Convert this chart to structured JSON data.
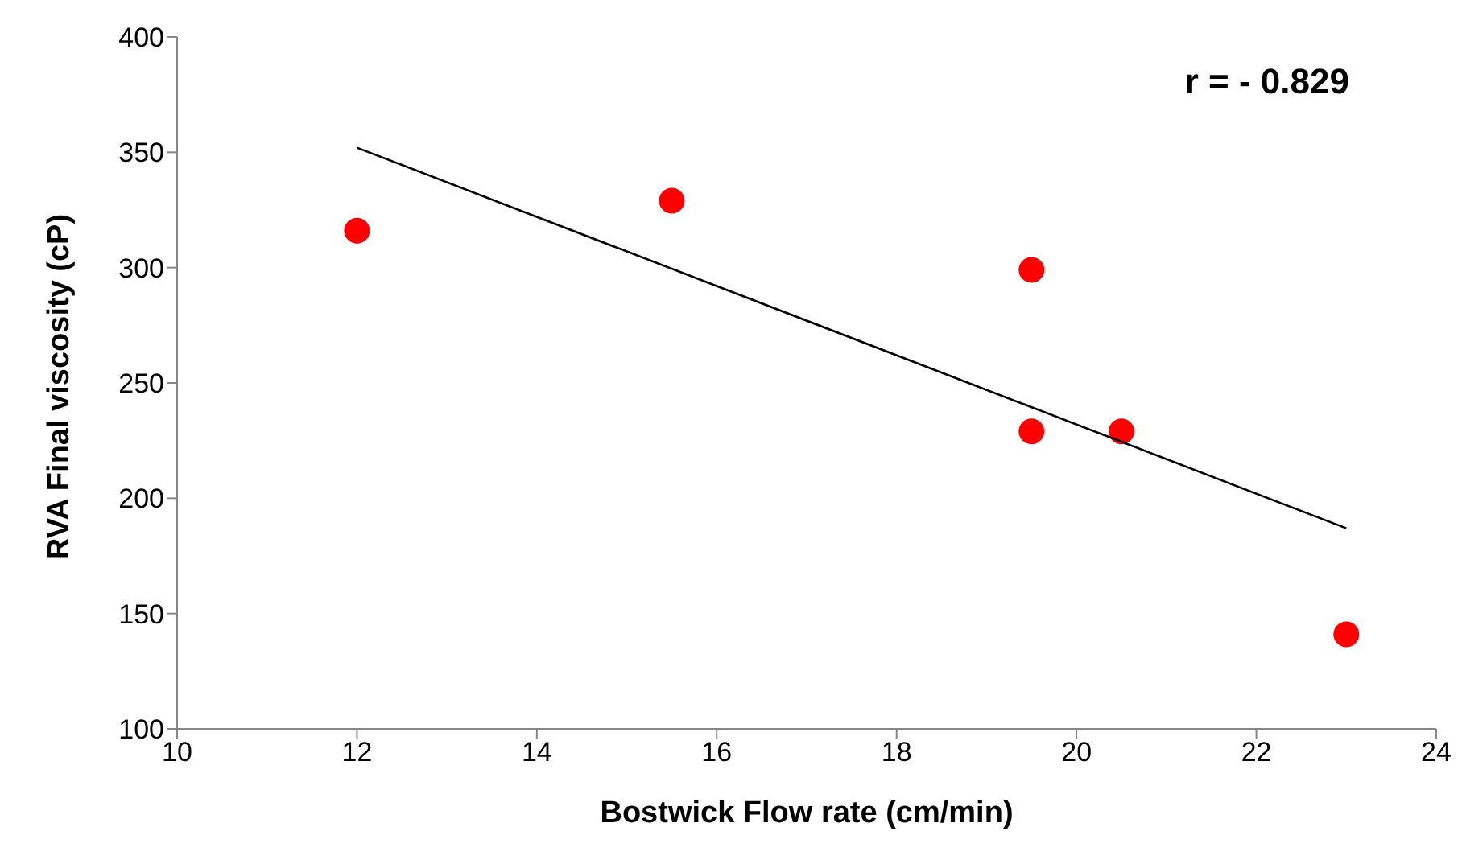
{
  "chart_data": {
    "type": "scatter",
    "xlabel": "Bostwick Flow rate (cm/min)",
    "ylabel": "RVA Final viscosity (cP)",
    "annotations": [
      "r = - 0.829"
    ],
    "xlim": [
      10,
      24
    ],
    "xticks": [
      10,
      12,
      14,
      16,
      18,
      20,
      22,
      24
    ],
    "ylim": [
      100,
      400
    ],
    "yticks": [
      100,
      150,
      200,
      250,
      300,
      350,
      400
    ],
    "grid": false,
    "legend": false,
    "series": [
      {
        "color": "#ff0000",
        "marker": "circle",
        "x": [
          12,
          15.5,
          19.5,
          19.5,
          20.5,
          23
        ],
        "values": [
          316,
          329,
          299,
          229,
          229,
          141
        ]
      },
      {
        "type": "line",
        "color": "#000000",
        "x": [
          12,
          23
        ],
        "values": [
          352,
          187
        ]
      }
    ]
  }
}
